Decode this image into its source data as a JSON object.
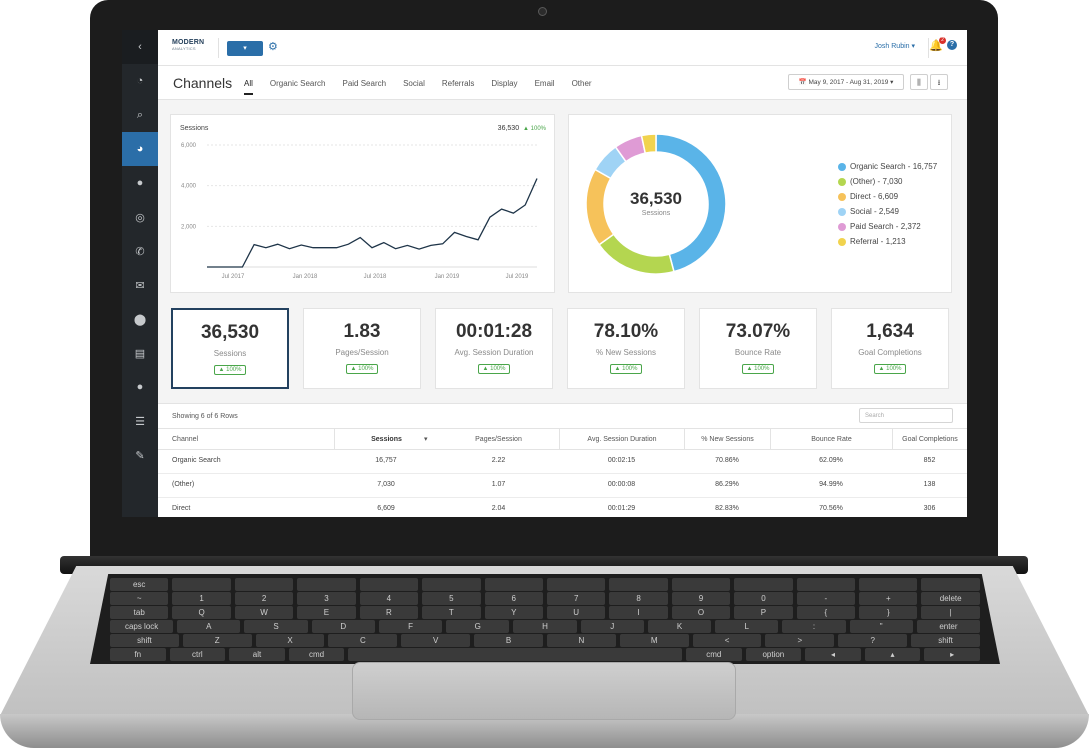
{
  "app": {
    "logo_text": "MODERN",
    "logo_sub": "ANALYTICS",
    "account_button": "▾",
    "user_name": "Josh Rubin ▾",
    "notification_count": "2"
  },
  "sidebar": {
    "items": [
      {
        "icon": "chevron-left-icon",
        "glyph": "‹"
      },
      {
        "icon": "dashboard-icon",
        "glyph": "◔"
      },
      {
        "icon": "search-icon",
        "glyph": "⌕"
      },
      {
        "icon": "pie-chart-icon",
        "glyph": "◕"
      },
      {
        "icon": "chat-icon",
        "glyph": "●"
      },
      {
        "icon": "target-icon",
        "glyph": "◎"
      },
      {
        "icon": "phone-icon",
        "glyph": "✆"
      },
      {
        "icon": "mail-icon",
        "glyph": "✉"
      },
      {
        "icon": "map-pin-icon",
        "glyph": "⬤"
      },
      {
        "icon": "document-icon",
        "glyph": "▤"
      },
      {
        "icon": "user-icon",
        "glyph": "●"
      },
      {
        "icon": "list-icon",
        "glyph": "☰"
      },
      {
        "icon": "wrench-icon",
        "glyph": "✎"
      }
    ]
  },
  "header": {
    "title": "Channels",
    "tabs": [
      "All",
      "Organic Search",
      "Paid Search",
      "Social",
      "Referrals",
      "Display",
      "Email",
      "Other"
    ],
    "active_tab": "All",
    "date_range": "📅 May 9, 2017 - Aug 31, 2019 ▾"
  },
  "line_card": {
    "title": "Sessions",
    "total": "36,530",
    "change": "▲ 100%"
  },
  "chart_data": [
    {
      "type": "line",
      "title": "Sessions",
      "x_ticks": [
        "Jul 2017",
        "Jan 2018",
        "Jul 2018",
        "Jan 2019",
        "Jul 2019"
      ],
      "y_ticks": [
        "2,000",
        "4,000",
        "6,000"
      ],
      "ylim": [
        0,
        6000
      ],
      "grid": true,
      "values": [
        0,
        0,
        0,
        0,
        1100,
        950,
        1120,
        900,
        1080,
        950,
        950,
        950,
        1120,
        1450,
        950,
        1200,
        900,
        1060,
        880,
        1060,
        1140,
        1700,
        1500,
        1340,
        2450,
        2850,
        2650,
        3050,
        4350
      ]
    },
    {
      "type": "pie",
      "donut": true,
      "center_value": "36,530",
      "center_label": "Sessions",
      "legend_position": "right",
      "slices": [
        {
          "label": "Organic Search - 16,757",
          "value": 16757,
          "color": "#5ab4e8"
        },
        {
          "label": "(Other) - 7,030",
          "value": 7030,
          "color": "#b4d650"
        },
        {
          "label": "Direct - 6,609",
          "value": 6609,
          "color": "#f6c25a"
        },
        {
          "label": "Social - 2,549",
          "value": 2549,
          "color": "#9fd3f5"
        },
        {
          "label": "Paid Search - 2,372",
          "value": 2372,
          "color": "#df9bd5"
        },
        {
          "label": "Referral - 1,213",
          "value": 1213,
          "color": "#f1d34e"
        }
      ]
    }
  ],
  "metrics": [
    {
      "value": "36,530",
      "label": "Sessions",
      "badge": "▲ 100%"
    },
    {
      "value": "1.83",
      "label": "Pages/Session",
      "badge": "▲ 100%"
    },
    {
      "value": "00:01:28",
      "label": "Avg. Session Duration",
      "badge": "▲ 100%"
    },
    {
      "value": "78.10%",
      "label": "% New Sessions",
      "badge": "▲ 100%"
    },
    {
      "value": "73.07%",
      "label": "Bounce Rate",
      "badge": "▲ 100%"
    },
    {
      "value": "1,634",
      "label": "Goal Completions",
      "badge": "▲ 100%"
    }
  ],
  "table": {
    "info": "Showing 6 of 6 Rows",
    "search_placeholder": "Search",
    "columns": [
      "Channel",
      "Sessions",
      "Pages/Session",
      "Avg. Session Duration",
      "% New Sessions",
      "Bounce Rate",
      "Goal Completions"
    ],
    "sort_indicator": "▾",
    "rows": [
      [
        "Organic Search",
        "16,757",
        "2.22",
        "00:02:15",
        "70.86%",
        "62.09%",
        "852"
      ],
      [
        "(Other)",
        "7,030",
        "1.07",
        "00:00:08",
        "86.29%",
        "94.99%",
        "138"
      ],
      [
        "Direct",
        "6,609",
        "2.04",
        "00:01:29",
        "82.83%",
        "70.56%",
        "306"
      ]
    ]
  },
  "keyboard": {
    "row_labels": [
      [
        "esc",
        "",
        "",
        "",
        "",
        "",
        "",
        "",
        "",
        "",
        "",
        "",
        "",
        ""
      ],
      [
        "~",
        "1",
        "2",
        "3",
        "4",
        "5",
        "6",
        "7",
        "8",
        "9",
        "0",
        "-",
        "+",
        "delete"
      ],
      [
        "tab",
        "Q",
        "W",
        "E",
        "R",
        "T",
        "Y",
        "U",
        "I",
        "O",
        "P",
        "{",
        "}",
        "|"
      ],
      [
        "caps lock",
        "A",
        "S",
        "D",
        "F",
        "G",
        "H",
        "J",
        "K",
        "L",
        ":",
        "\"",
        "enter"
      ],
      [
        "shift",
        "Z",
        "X",
        "C",
        "V",
        "B",
        "N",
        "M",
        "<",
        ">",
        "?",
        "shift"
      ],
      [
        "fn",
        "ctrl",
        "alt",
        "cmd",
        "",
        "cmd",
        "option",
        "◂",
        "▴",
        "▸"
      ]
    ]
  }
}
